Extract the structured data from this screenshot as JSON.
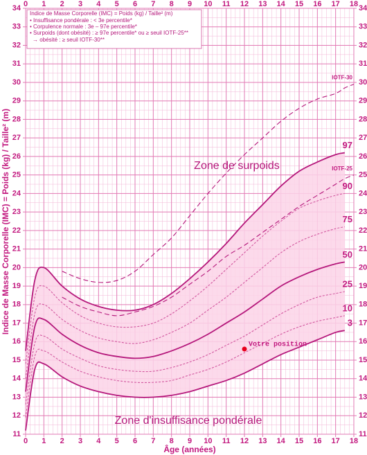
{
  "chart_data": {
    "type": "line",
    "title": "Indice de Masse Corporelle (IMC) = Poids (kg) / Taille² (m)",
    "legend_lines": [
      "• Insuffisance pondérale : < 3e percentile*",
      "• Corpulence normale : 3e – 97e percentile*",
      "• Surpoids (dont obésité) : ≥ 97e percentile* ou ≥ seuil IOTF-25**",
      "→ obésité : ≥ seuil IOTF-30**"
    ],
    "x_label": "Âge (années)",
    "y_label": "Indice de Masse Corporelle (IMC) = Poids (kg) / Taille² (m)",
    "annotations": [
      "Zone de surpoids",
      "Zone d'insuffisance pondérale"
    ],
    "x": [
      0,
      0.5,
      1,
      2,
      3,
      4,
      5,
      6,
      7,
      8,
      9,
      10,
      11,
      12,
      13,
      14,
      15,
      16,
      17,
      17.5,
      18
    ],
    "series": [
      {
        "name": "3",
        "color": "#b5177b",
        "style": "solid",
        "values": [
          11.2,
          14.5,
          14.8,
          14.1,
          13.6,
          13.3,
          13.1,
          13.0,
          13.0,
          13.1,
          13.3,
          13.6,
          13.9,
          14.3,
          14.8,
          15.3,
          15.7,
          16.1,
          16.5,
          16.6,
          null
        ]
      },
      {
        "name": "10",
        "color": "#d2579f",
        "style": "dashed",
        "values": [
          11.9,
          15.2,
          15.5,
          14.9,
          14.4,
          14.1,
          13.9,
          13.8,
          13.8,
          13.9,
          14.2,
          14.5,
          14.9,
          15.4,
          15.9,
          16.4,
          16.8,
          17.1,
          17.3,
          17.4,
          null
        ]
      },
      {
        "name": "25",
        "color": "#d2579f",
        "style": "dashed",
        "values": [
          12.6,
          15.9,
          16.3,
          15.6,
          15.1,
          14.7,
          14.5,
          14.4,
          14.4,
          14.6,
          14.9,
          15.3,
          15.8,
          16.3,
          16.9,
          17.5,
          18.0,
          18.4,
          18.6,
          18.7,
          null
        ]
      },
      {
        "name": "50",
        "color": "#b5177b",
        "style": "solid",
        "values": [
          13.3,
          16.8,
          17.2,
          16.4,
          15.8,
          15.4,
          15.2,
          15.1,
          15.2,
          15.5,
          15.9,
          16.4,
          17.0,
          17.6,
          18.3,
          19.0,
          19.5,
          19.9,
          20.2,
          20.3,
          null
        ]
      },
      {
        "name": "75",
        "color": "#d2579f",
        "style": "dashed",
        "values": [
          14.0,
          17.5,
          18.0,
          17.2,
          16.6,
          16.2,
          16.0,
          15.9,
          16.1,
          16.5,
          17.0,
          17.7,
          18.4,
          19.2,
          20.0,
          20.8,
          21.4,
          21.8,
          22.1,
          22.2,
          null
        ]
      },
      {
        "name": "90",
        "color": "#d2579f",
        "style": "dashed",
        "values": [
          14.8,
          18.4,
          19.0,
          18.1,
          17.4,
          17.0,
          16.8,
          16.8,
          17.0,
          17.5,
          18.2,
          19.0,
          19.9,
          20.8,
          21.7,
          22.5,
          23.2,
          23.6,
          23.9,
          24.0,
          null
        ]
      },
      {
        "name": "97",
        "color": "#b5177b",
        "style": "solid",
        "values": [
          15.5,
          19.3,
          20.0,
          19.0,
          18.3,
          17.9,
          17.7,
          17.7,
          18.0,
          18.6,
          19.4,
          20.3,
          21.3,
          22.4,
          23.4,
          24.4,
          25.2,
          25.7,
          26.1,
          26.2,
          null
        ]
      },
      {
        "name": "IOTF-25",
        "color": "#b5177b",
        "style": "longdash",
        "values": [
          null,
          null,
          null,
          18.4,
          17.9,
          17.6,
          17.4,
          17.6,
          17.9,
          18.4,
          19.1,
          19.8,
          20.6,
          21.2,
          21.9,
          22.6,
          23.3,
          23.9,
          24.5,
          24.8,
          25.0
        ]
      },
      {
        "name": "IOTF-30",
        "color": "#b5177b",
        "style": "longdash",
        "values": [
          null,
          null,
          null,
          19.8,
          19.4,
          19.2,
          19.3,
          19.8,
          20.7,
          21.6,
          22.8,
          24.0,
          25.1,
          26.1,
          27.0,
          27.9,
          28.6,
          29.1,
          29.4,
          29.7,
          29.9
        ]
      }
    ],
    "point": {
      "label": "Votre position",
      "x": 12,
      "y": 15.6,
      "color": "#e8001c"
    },
    "fill_color": "#fbd3e7",
    "xlim": [
      0,
      18
    ],
    "xticks": [
      0,
      1,
      2,
      3,
      4,
      5,
      6,
      7,
      8,
      9,
      10,
      11,
      12,
      13,
      14,
      15,
      16,
      17,
      18
    ],
    "ylim": [
      11,
      34
    ],
    "yticks": [
      11,
      12,
      13,
      14,
      15,
      16,
      17,
      18,
      19,
      20,
      21,
      22,
      23,
      24,
      25,
      26,
      27,
      28,
      29,
      30,
      31,
      32,
      33,
      34
    ],
    "grid": true
  }
}
